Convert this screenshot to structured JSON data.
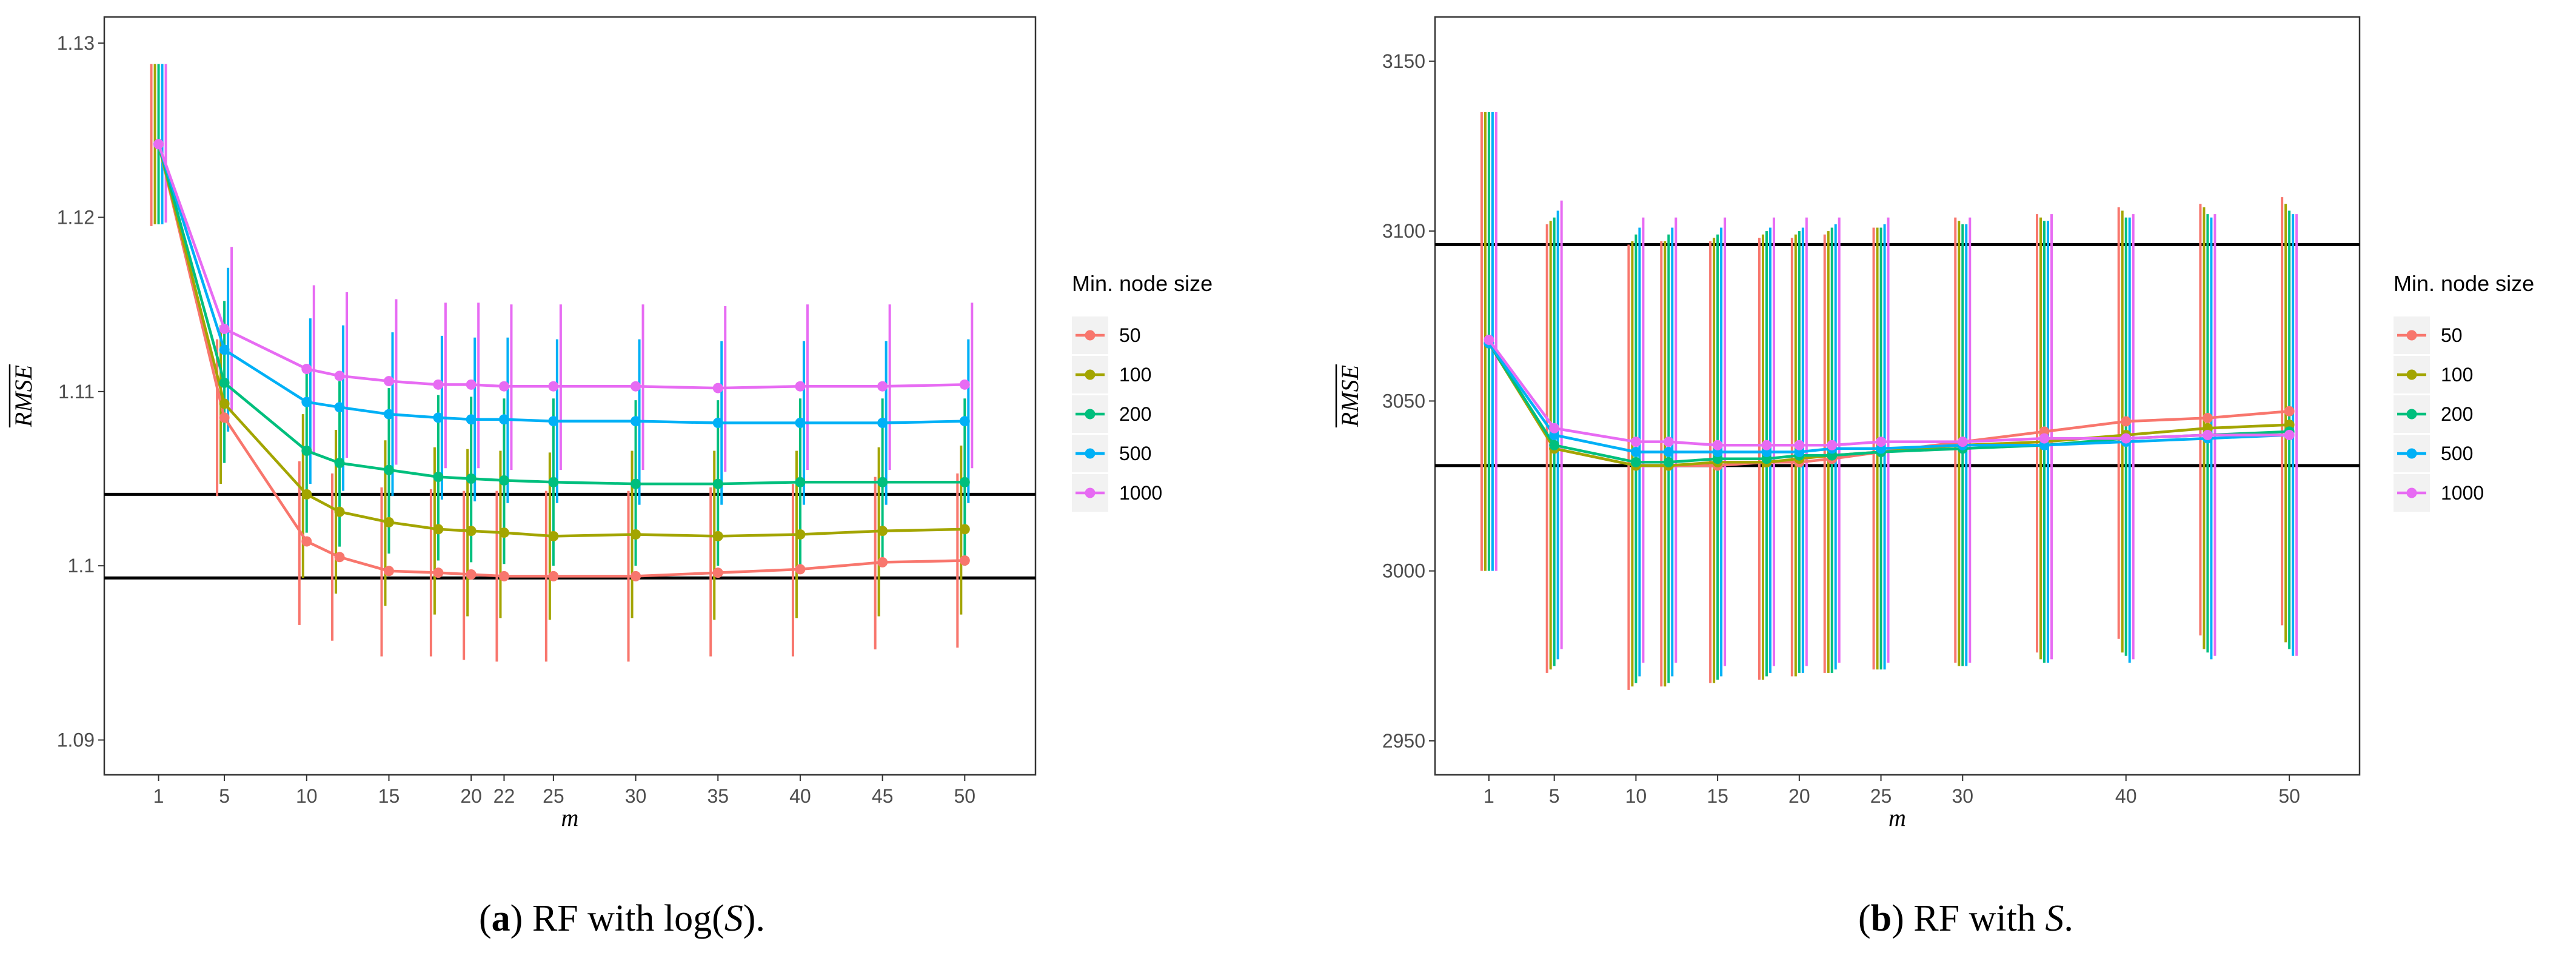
{
  "chart_data": [
    {
      "type": "line",
      "panel": "a",
      "xlabel": "m",
      "ylabel": "RMSE",
      "ylabel_overline": true,
      "x": [
        1,
        5,
        10,
        12,
        15,
        18,
        20,
        22,
        25,
        30,
        35,
        40,
        45,
        50
      ],
      "x_ticks": [
        1,
        5,
        10,
        15,
        20,
        22,
        25,
        30,
        35,
        40,
        45,
        50
      ],
      "xlim": [
        -2.3,
        54.3
      ],
      "ylim": [
        1.088,
        1.1315
      ],
      "y_ticks": [
        1.09,
        1.1,
        1.11,
        1.12,
        1.13
      ],
      "y_tick_labels": [
        "1.09",
        "1.1",
        "1.11",
        "1.12",
        "1.13"
      ],
      "hlines": [
        1.1041,
        1.0993
      ],
      "legend_title": "Min. node size",
      "series": [
        {
          "name": "50",
          "color": "#F8766D",
          "values": [
            1.1242,
            1.1085,
            1.1014,
            1.1005,
            1.0997,
            1.0996,
            1.0995,
            1.0994,
            1.0994,
            1.0994,
            1.0996,
            1.0998,
            1.1002,
            1.1003
          ],
          "lower": [
            1.1195,
            1.104,
            1.0966,
            1.0957,
            1.0948,
            1.0948,
            1.0946,
            1.0945,
            1.0945,
            1.0945,
            1.0948,
            1.0948,
            1.0952,
            1.0953
          ],
          "upper": [
            1.1288,
            1.113,
            1.106,
            1.1053,
            1.1045,
            1.1044,
            1.1043,
            1.1043,
            1.1043,
            1.1043,
            1.1045,
            1.1047,
            1.1051,
            1.1053
          ]
        },
        {
          "name": "100",
          "color": "#A3A500",
          "values": [
            1.1242,
            1.1093,
            1.1041,
            1.1031,
            1.1025,
            1.1021,
            1.102,
            1.1019,
            1.1017,
            1.1018,
            1.1017,
            1.1018,
            1.102,
            1.1021
          ],
          "lower": [
            1.1196,
            1.1047,
            1.0993,
            1.0984,
            1.0977,
            1.0972,
            1.0971,
            1.097,
            1.0969,
            1.097,
            1.0969,
            1.097,
            1.0971,
            1.0972
          ],
          "upper": [
            1.1288,
            1.1138,
            1.1087,
            1.1078,
            1.1072,
            1.1068,
            1.1067,
            1.1066,
            1.1065,
            1.1066,
            1.1066,
            1.1066,
            1.1068,
            1.1069
          ]
        },
        {
          "name": "200",
          "color": "#00BF7D",
          "values": [
            1.1242,
            1.1105,
            1.1066,
            1.1059,
            1.1055,
            1.1051,
            1.105,
            1.1049,
            1.1048,
            1.1047,
            1.1047,
            1.1048,
            1.1048,
            1.1048
          ],
          "lower": [
            1.1196,
            1.1059,
            1.1019,
            1.1011,
            1.1007,
            1.1003,
            1.1002,
            1.1001,
            1.1,
            1.1,
            1.1,
            1.1,
            1.1,
            1.1
          ],
          "upper": [
            1.1288,
            1.1152,
            1.1112,
            1.1106,
            1.1102,
            1.1098,
            1.1097,
            1.1096,
            1.1096,
            1.1095,
            1.1095,
            1.1096,
            1.1096,
            1.1096
          ]
        },
        {
          "name": "500",
          "color": "#00B0F6",
          "values": [
            1.1242,
            1.1124,
            1.1094,
            1.1091,
            1.1087,
            1.1085,
            1.1084,
            1.1084,
            1.1083,
            1.1083,
            1.1082,
            1.1082,
            1.1082,
            1.1083
          ],
          "lower": [
            1.1196,
            1.1077,
            1.1047,
            1.1043,
            1.104,
            1.1038,
            1.1037,
            1.1036,
            1.1036,
            1.1035,
            1.1035,
            1.1035,
            1.1035,
            1.1036
          ],
          "upper": [
            1.1288,
            1.1171,
            1.1142,
            1.1138,
            1.1134,
            1.1132,
            1.1131,
            1.1131,
            1.113,
            1.113,
            1.1129,
            1.1129,
            1.1129,
            1.113
          ]
        },
        {
          "name": "1000",
          "color": "#E76BF3",
          "values": [
            1.1242,
            1.1136,
            1.1113,
            1.1109,
            1.1106,
            1.1104,
            1.1104,
            1.1103,
            1.1103,
            1.1103,
            1.1102,
            1.1103,
            1.1103,
            1.1104
          ],
          "lower": [
            1.1197,
            1.1089,
            1.1065,
            1.1062,
            1.1058,
            1.1056,
            1.1056,
            1.1055,
            1.1055,
            1.1055,
            1.1054,
            1.1055,
            1.1055,
            1.1056
          ],
          "upper": [
            1.1288,
            1.1183,
            1.1161,
            1.1157,
            1.1153,
            1.1151,
            1.1151,
            1.115,
            1.115,
            1.115,
            1.1149,
            1.115,
            1.115,
            1.1151
          ]
        }
      ]
    },
    {
      "type": "line",
      "panel": "b",
      "xlabel": "m",
      "ylabel": "RMSE",
      "ylabel_overline": true,
      "x": [
        1,
        5,
        10,
        12,
        15,
        18,
        20,
        22,
        25,
        30,
        35,
        40,
        45,
        50
      ],
      "x_ticks": [
        1,
        5,
        10,
        15,
        20,
        25,
        30,
        40,
        50
      ],
      "xlim": [
        -2.3,
        54.3
      ],
      "ylim": [
        2940,
        3163
      ],
      "y_ticks": [
        2950,
        3000,
        3050,
        3100,
        3150
      ],
      "y_tick_labels": [
        "2950",
        "3000",
        "3050",
        "3100",
        "3150"
      ],
      "hlines": [
        3096,
        3031
      ],
      "legend_title": "Min. node size",
      "series": [
        {
          "name": "50",
          "color": "#F8766D",
          "values": [
            3067,
            3036,
            3031,
            3031,
            3031,
            3032,
            3032,
            3033,
            3035,
            3038,
            3041,
            3044,
            3045,
            3047
          ],
          "lower": [
            3000,
            2970,
            2965,
            2966,
            2967,
            2968,
            2969,
            2970,
            2971,
            2973,
            2976,
            2980,
            2981,
            2984
          ],
          "upper": [
            3135,
            3102,
            3096,
            3097,
            3097,
            3098,
            3098,
            3099,
            3101,
            3104,
            3105,
            3107,
            3108,
            3110
          ]
        },
        {
          "name": "100",
          "color": "#A3A500",
          "values": [
            3067,
            3036,
            3031,
            3031,
            3032,
            3032,
            3033,
            3034,
            3035,
            3037,
            3038,
            3040,
            3042,
            3043
          ],
          "lower": [
            3000,
            2971,
            2966,
            2966,
            2967,
            2968,
            2969,
            2970,
            2971,
            2972,
            2974,
            2976,
            2977,
            2979
          ],
          "upper": [
            3135,
            3103,
            3097,
            3097,
            3098,
            3099,
            3099,
            3100,
            3101,
            3103,
            3104,
            3106,
            3107,
            3108
          ]
        },
        {
          "name": "200",
          "color": "#00BF7D",
          "values": [
            3067,
            3037,
            3032,
            3032,
            3033,
            3033,
            3034,
            3034,
            3035,
            3036,
            3037,
            3039,
            3040,
            3041
          ],
          "lower": [
            3000,
            2972,
            2967,
            2967,
            2968,
            2969,
            2970,
            2970,
            2971,
            2972,
            2973,
            2975,
            2976,
            2977
          ],
          "upper": [
            3135,
            3104,
            3099,
            3099,
            3099,
            3100,
            3100,
            3101,
            3101,
            3102,
            3103,
            3104,
            3105,
            3106
          ]
        },
        {
          "name": "500",
          "color": "#00B0F6",
          "values": [
            3067,
            3040,
            3035,
            3035,
            3035,
            3035,
            3035,
            3036,
            3036,
            3037,
            3037,
            3038,
            3039,
            3040
          ],
          "lower": [
            3000,
            2974,
            2969,
            2969,
            2969,
            2970,
            2970,
            2971,
            2971,
            2972,
            2973,
            2973,
            2974,
            2975
          ],
          "upper": [
            3135,
            3106,
            3101,
            3101,
            3101,
            3101,
            3101,
            3102,
            3102,
            3102,
            3103,
            3104,
            3104,
            3105
          ]
        },
        {
          "name": "1000",
          "color": "#E76BF3",
          "values": [
            3068,
            3042,
            3038,
            3038,
            3037,
            3037,
            3037,
            3037,
            3038,
            3038,
            3039,
            3039,
            3040,
            3040
          ],
          "lower": [
            3000,
            2977,
            2973,
            2973,
            2972,
            2972,
            2972,
            2973,
            2973,
            2973,
            2974,
            2974,
            2975,
            2975
          ],
          "upper": [
            3135,
            3109,
            3104,
            3104,
            3104,
            3104,
            3104,
            3104,
            3104,
            3104,
            3105,
            3105,
            3105,
            3105
          ]
        }
      ]
    }
  ],
  "captions": [
    {
      "label": "(a)",
      "letter": "a",
      "text_before": "RF with log(",
      "var": "S",
      "text_after": ")."
    },
    {
      "label": "(b)",
      "letter": "b",
      "text_before": "RF with ",
      "var": "S",
      "text_after": "."
    }
  ]
}
